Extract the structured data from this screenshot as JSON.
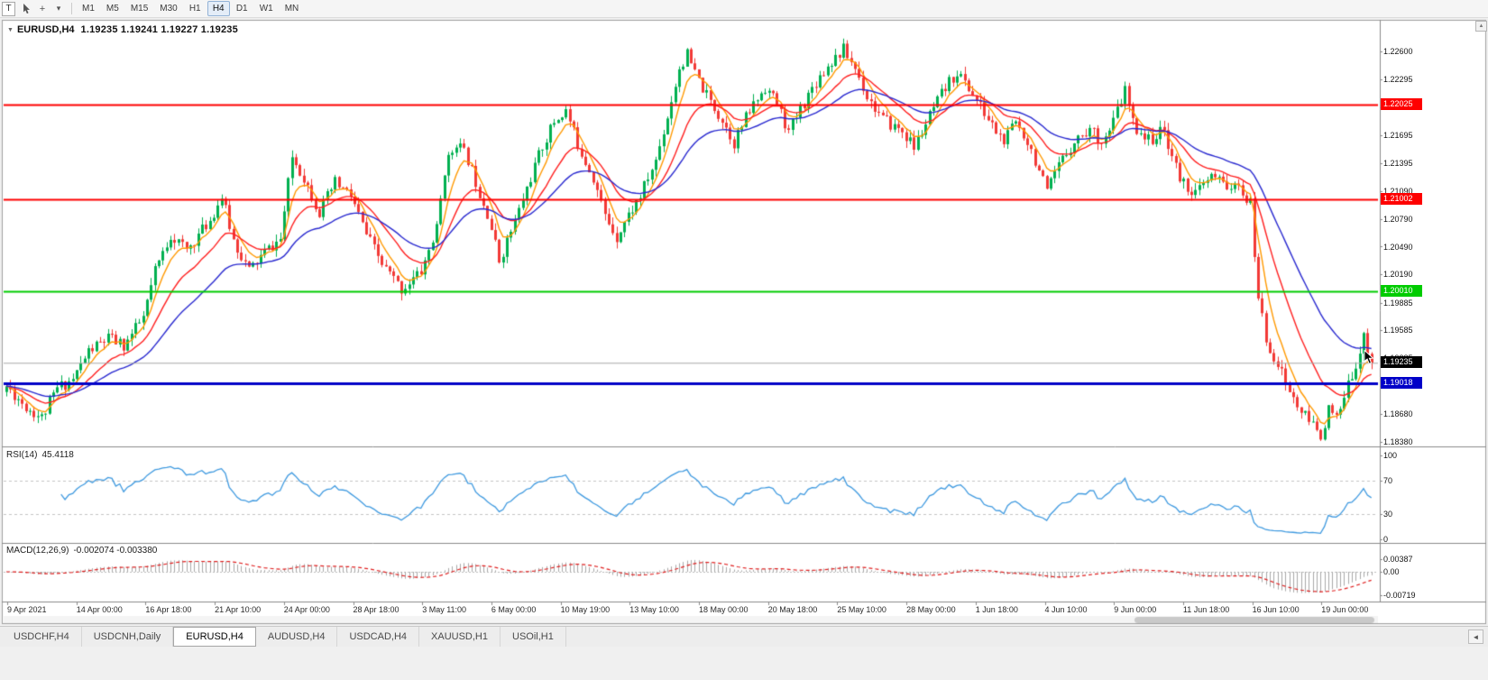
{
  "toolbar": {
    "handle_label": "T",
    "dropdown_glyph": "▾",
    "crosshair_glyph": "+",
    "timeframes": [
      "M1",
      "M5",
      "M15",
      "M30",
      "H1",
      "H4",
      "D1",
      "W1",
      "MN"
    ],
    "active_timeframe": "H4"
  },
  "chart": {
    "symbol_triangle": "▼",
    "title": "EURUSD,H4",
    "ohlc": "1.19235 1.19241 1.19227 1.19235"
  },
  "price_axis": {
    "labels": [
      "1.22600",
      "1.22295",
      "1.21995",
      "1.21695",
      "1.21395",
      "1.21090",
      "1.20790",
      "1.20490",
      "1.20190",
      "1.19885",
      "1.19585",
      "1.19285",
      "1.18985",
      "1.18680",
      "1.18380"
    ]
  },
  "levels": [
    {
      "price": 1.22025,
      "label": "1.22025",
      "color": "#fe0000",
      "width": 2
    },
    {
      "price": 1.21002,
      "label": "1.21002",
      "color": "#fe0000",
      "width": 2
    },
    {
      "price": 1.2001,
      "label": "1.20010",
      "color": "#00cc00",
      "width": 2
    },
    {
      "price": 1.19018,
      "label": "1.19018",
      "color": "#0000c8",
      "width": 3
    }
  ],
  "current": {
    "bid": 1.19235,
    "bid_label": "1.19235",
    "badge_color": "#000000",
    "line_color": "#a8a8a8"
  },
  "rsi": {
    "title": "RSI(14)",
    "value": "45.4118",
    "period": 14,
    "axis": [
      "100",
      "70",
      "30",
      "0"
    ],
    "color": "#3f9ae0",
    "level_lines": [
      70,
      30
    ]
  },
  "macd": {
    "title": "MACD(12,26,9)",
    "values": "-0.002074 -0.003380",
    "periods": [
      12,
      26,
      9
    ],
    "axis": [
      "0.00387",
      "0.00",
      "-0.00719"
    ],
    "histogram_color": "#a9a9a9",
    "signal_color": "#e02020"
  },
  "time_axis": {
    "labels": [
      "9 Apr 2021",
      "14 Apr 00:00",
      "16 Apr 18:00",
      "21 Apr 10:00",
      "24 Apr 00:00",
      "28 Apr 18:00",
      "3 May 11:00",
      "6 May 00:00",
      "10 May 19:00",
      "13 May 10:00",
      "18 May 00:00",
      "20 May 18:00",
      "25 May 10:00",
      "28 May 00:00",
      "1 Jun 18:00",
      "4 Jun 10:00",
      "9 Jun 00:00",
      "11 Jun 18:00",
      "16 Jun 10:00",
      "19 Jun 00:00"
    ]
  },
  "tabs": [
    {
      "label": "USDCHF,H4",
      "active": false
    },
    {
      "label": "USDCNH,Daily",
      "active": false
    },
    {
      "label": "EURUSD,H4",
      "active": true
    },
    {
      "label": "AUDUSD,H4",
      "active": false
    },
    {
      "label": "USDCAD,H4",
      "active": false
    },
    {
      "label": "XAUUSD,H1",
      "active": false
    },
    {
      "label": "USOil,H1",
      "active": false
    }
  ],
  "misc": {
    "scroll_up_glyph": "▲",
    "tab_scroll_glyph": "◄"
  },
  "chart_data": {
    "type": "candlestick",
    "symbol": "EURUSD",
    "timeframe": "H4",
    "bars": 350,
    "seed": 11,
    "noise": 0.0014,
    "wick": 0.0008,
    "ylim": [
      1.1838,
      1.226
    ],
    "colors": {
      "up": "#00b050",
      "down": "#f23936"
    },
    "ma": [
      {
        "period": 6,
        "color": "#ff9900"
      },
      {
        "period": 16,
        "color": "#ff2020"
      },
      {
        "period": 34,
        "color": "#2a2ad0"
      }
    ],
    "anchors": [
      [
        0,
        1.1898
      ],
      [
        5,
        1.1876
      ],
      [
        9,
        1.1864
      ],
      [
        13,
        1.1896
      ],
      [
        17,
        1.1906
      ],
      [
        21,
        1.1936
      ],
      [
        26,
        1.195
      ],
      [
        30,
        1.1942
      ],
      [
        35,
        1.1972
      ],
      [
        38,
        1.2022
      ],
      [
        42,
        1.2062
      ],
      [
        46,
        1.2045
      ],
      [
        52,
        1.2078
      ],
      [
        55,
        1.2103
      ],
      [
        58,
        1.2056
      ],
      [
        62,
        1.2023
      ],
      [
        66,
        1.2043
      ],
      [
        70,
        1.2057
      ],
      [
        73,
        1.2146
      ],
      [
        76,
        1.2124
      ],
      [
        80,
        1.2086
      ],
      [
        84,
        1.2118
      ],
      [
        88,
        1.2104
      ],
      [
        92,
        1.2062
      ],
      [
        96,
        1.203
      ],
      [
        101,
        1.2003
      ],
      [
        106,
        1.2022
      ],
      [
        110,
        1.2068
      ],
      [
        112,
        1.2132
      ],
      [
        115,
        1.2163
      ],
      [
        118,
        1.2143
      ],
      [
        121,
        1.2108
      ],
      [
        123,
        1.2086
      ],
      [
        126,
        1.2034
      ],
      [
        130,
        1.2076
      ],
      [
        134,
        1.2124
      ],
      [
        137,
        1.2158
      ],
      [
        140,
        1.2184
      ],
      [
        143,
        1.2196
      ],
      [
        146,
        1.216
      ],
      [
        150,
        1.2124
      ],
      [
        153,
        1.2082
      ],
      [
        156,
        1.206
      ],
      [
        158,
        1.2076
      ],
      [
        162,
        1.2104
      ],
      [
        166,
        1.2142
      ],
      [
        169,
        1.219
      ],
      [
        172,
        1.2242
      ],
      [
        174,
        1.2256
      ],
      [
        176,
        1.2236
      ],
      [
        179,
        1.2212
      ],
      [
        183,
        1.2186
      ],
      [
        186,
        1.2162
      ],
      [
        190,
        1.2196
      ],
      [
        194,
        1.2222
      ],
      [
        197,
        1.2204
      ],
      [
        200,
        1.2172
      ],
      [
        203,
        1.2198
      ],
      [
        207,
        1.2228
      ],
      [
        211,
        1.225
      ],
      [
        214,
        1.2262
      ],
      [
        217,
        1.2242
      ],
      [
        220,
        1.2212
      ],
      [
        224,
        1.2186
      ],
      [
        229,
        1.2174
      ],
      [
        232,
        1.2156
      ],
      [
        236,
        1.219
      ],
      [
        240,
        1.222
      ],
      [
        243,
        1.2238
      ],
      [
        247,
        1.2214
      ],
      [
        251,
        1.2186
      ],
      [
        255,
        1.2162
      ],
      [
        258,
        1.2184
      ],
      [
        261,
        1.2164
      ],
      [
        264,
        1.2132
      ],
      [
        266,
        1.2106
      ],
      [
        269,
        1.2136
      ],
      [
        273,
        1.2164
      ],
      [
        277,
        1.2176
      ],
      [
        280,
        1.2164
      ],
      [
        282,
        1.2172
      ],
      [
        284,
        1.2196
      ],
      [
        286,
        1.2218
      ],
      [
        288,
        1.2182
      ],
      [
        292,
        1.2164
      ],
      [
        296,
        1.2174
      ],
      [
        300,
        1.2122
      ],
      [
        304,
        1.2106
      ],
      [
        308,
        1.2124
      ],
      [
        312,
        1.2116
      ],
      [
        316,
        1.2108
      ],
      [
        318,
        1.2094
      ],
      [
        319,
        1.204
      ],
      [
        320,
        1.1996
      ],
      [
        322,
        1.1948
      ],
      [
        325,
        1.1922
      ],
      [
        328,
        1.1892
      ],
      [
        331,
        1.187
      ],
      [
        334,
        1.1856
      ],
      [
        336,
        1.1846
      ],
      [
        338,
        1.1872
      ],
      [
        340,
        1.1862
      ],
      [
        342,
        1.1884
      ],
      [
        344,
        1.1912
      ],
      [
        346,
        1.1936
      ],
      [
        347,
        1.195
      ],
      [
        348,
        1.1938
      ],
      [
        349,
        1.19235
      ]
    ]
  }
}
